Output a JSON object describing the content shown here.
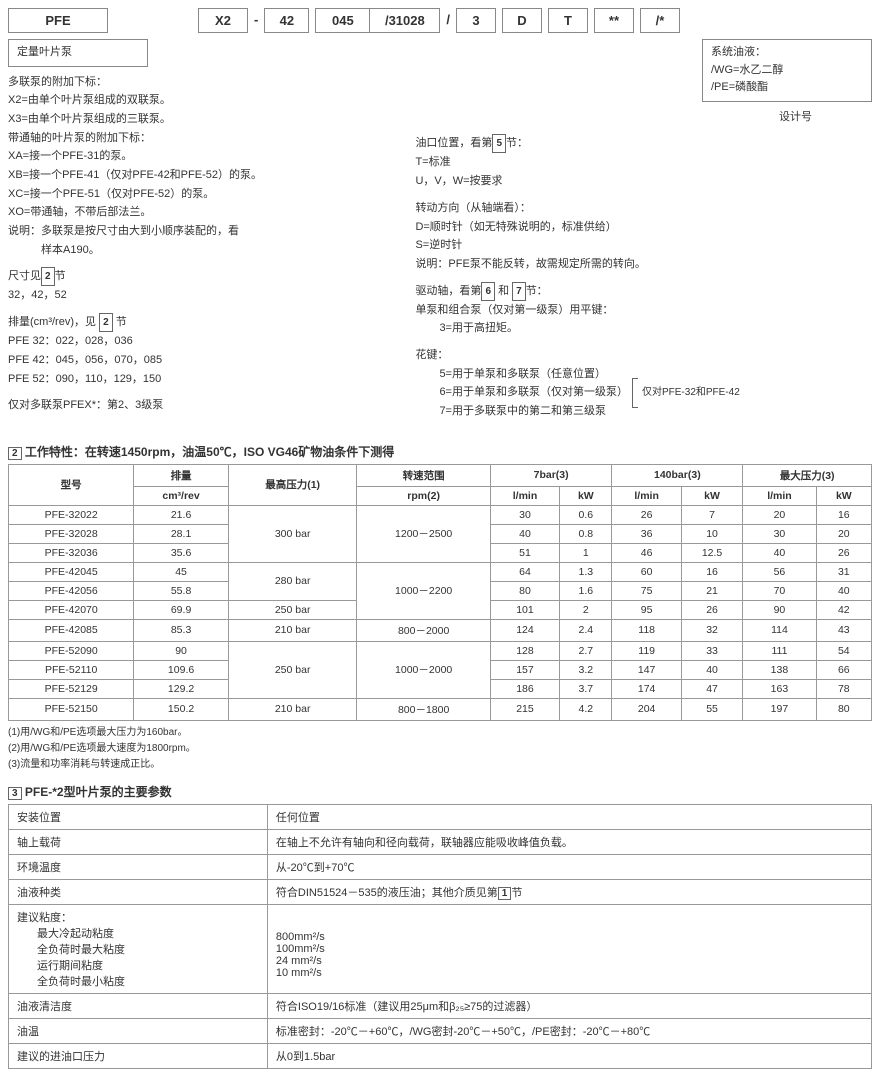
{
  "code": {
    "c1": "PFE",
    "c2": "X2",
    "c3": "42",
    "c4": "045",
    "c5": "/31028",
    "c6": "3",
    "c7": "D",
    "c8": "T",
    "c9": "**",
    "c10": "/*"
  },
  "left": {
    "box1": "定量叶片泵",
    "block1_title": "多联泵的附加下标：",
    "block1_lines": [
      "X2=由单个叶片泵组成的双联泵。",
      "X3=由单个叶片泵组成的三联泵。",
      "带通轴的叶片泵的附加下标：",
      "XA=接一个PFE-31的泵。",
      "XB=接一个PFE-41（仅对PFE-42和PFE-52）的泵。",
      "XC=接一个PFE-51（仅对PFE-52）的泵。",
      "XO=带通轴，不带后部法兰。",
      "说明：多联泵是按尺寸由大到小顺序装配的，看",
      "　　　样本A190。"
    ],
    "sizes_label": "尺寸见",
    "sizes_num": "2",
    "sizes_suffix": "节",
    "sizes_vals": "32，42，52",
    "disp_label": "排量(cm³/rev)，见",
    "disp_num": "2",
    "disp_suffix": "节",
    "disp_lines": [
      "PFE 32：022，028，036",
      "PFE 42：045，056，070，085",
      "PFE 52：090，110，129，150"
    ],
    "bottom": "仅对多联泵PFEX*：第2、3级泵"
  },
  "right": {
    "box_title": "系统油液：",
    "box_lines": [
      "/WG=水乙二醇",
      "/PE=磷酸酯"
    ],
    "design": "设计号",
    "port_title": "油口位置，看第",
    "port_num": "5",
    "port_suffix": "节：",
    "port_lines": [
      "T=标准",
      "U，V，W=按要求"
    ],
    "rot_title": "转动方向（从轴端看）：",
    "rot_lines": [
      "D=顺时针（如无特殊说明的，标准供给）",
      "S=逆时针",
      "说明：PFE泵不能反转，故需规定所需的转向。"
    ],
    "shaft_title_a": "驱动轴，看第",
    "shaft_num1": "6",
    "shaft_and": "和",
    "shaft_num2": "7",
    "shaft_suffix": "节：",
    "shaft_l1": "单泵和组合泵（仅对第一级泵）用平键：",
    "shaft_l2": "3=用于高扭矩。",
    "spline_title": "花键：",
    "spline_lines": [
      "5=用于单泵和多联泵（任意位置）",
      "6=用于单泵和多联泵（仅对第一级泵）",
      "7=用于多联泵中的第二和第三级泵"
    ],
    "spline_note": "仅对PFE-32和PFE-42"
  },
  "sec2": {
    "num": "2",
    "title": "工作特性：在转速1450rpm，油温50℃，ISO VG46矿物油条件下测得",
    "headers": {
      "model": "型号",
      "disp": "排量",
      "disp_unit": "cm³/rev",
      "pmax": "最高压力(1)",
      "speed": "转速范围",
      "speed_unit": "rpm(2)",
      "p7": "7bar(3)",
      "p140": "140bar(3)",
      "pmaxcol": "最大压力(3)",
      "lmin": "l/min",
      "kw": "kW"
    },
    "rows": [
      {
        "m": "PFE-32022",
        "d": "21.6",
        "p": "300 bar",
        "rp": 3,
        "s": "1200－2500",
        "srp": 3,
        "a": "30",
        "b": "0.6",
        "c": "26",
        "e": "7",
        "f": "20",
        "g": "16"
      },
      {
        "m": "PFE-32028",
        "d": "28.1",
        "a": "40",
        "b": "0.8",
        "c": "36",
        "e": "10",
        "f": "30",
        "g": "20"
      },
      {
        "m": "PFE-32036",
        "d": "35.6",
        "a": "51",
        "b": "1",
        "c": "46",
        "e": "12.5",
        "f": "40",
        "g": "26"
      },
      {
        "m": "PFE-42045",
        "d": "45",
        "p": "280 bar",
        "rp": 2,
        "s": "1000－2200",
        "srp": 3,
        "a": "64",
        "b": "1.3",
        "c": "60",
        "e": "16",
        "f": "56",
        "g": "31"
      },
      {
        "m": "PFE-42056",
        "d": "55.8",
        "a": "80",
        "b": "1.6",
        "c": "75",
        "e": "21",
        "f": "70",
        "g": "40"
      },
      {
        "m": "PFE-42070",
        "d": "69.9",
        "p": "250 bar",
        "rp": 1,
        "a": "101",
        "b": "2",
        "c": "95",
        "e": "26",
        "f": "90",
        "g": "42"
      },
      {
        "m": "PFE-42085",
        "d": "85.3",
        "p": "210 bar",
        "rp": 1,
        "s": "800－2000",
        "srp": 1,
        "a": "124",
        "b": "2.4",
        "c": "118",
        "e": "32",
        "f": "114",
        "g": "43"
      },
      {
        "m": "PFE-52090",
        "d": "90",
        "p": "250 bar",
        "rp": 3,
        "s": "1000－2000",
        "srp": 3,
        "a": "128",
        "b": "2.7",
        "c": "119",
        "e": "33",
        "f": "111",
        "g": "54"
      },
      {
        "m": "PFE-52110",
        "d": "109.6",
        "a": "157",
        "b": "3.2",
        "c": "147",
        "e": "40",
        "f": "138",
        "g": "66"
      },
      {
        "m": "PFE-52129",
        "d": "129.2",
        "a": "186",
        "b": "3.7",
        "c": "174",
        "e": "47",
        "f": "163",
        "g": "78"
      },
      {
        "m": "PFE-52150",
        "d": "150.2",
        "p": "210 bar",
        "rp": 1,
        "s": "800－1800",
        "srp": 1,
        "a": "215",
        "b": "4.2",
        "c": "204",
        "e": "55",
        "f": "197",
        "g": "80"
      }
    ],
    "notes": [
      "(1)用/WG和/PE选项最大压力为160bar。",
      "(2)用/WG和/PE选项最大速度为1800rpm。",
      "(3)流量和功率消耗与转速成正比。"
    ]
  },
  "sec3": {
    "num": "3",
    "title": "PFE-*2型叶片泵的主要参数",
    "rows": [
      {
        "k": "安装位置",
        "v": "任何位置"
      },
      {
        "k": "轴上载荷",
        "v": "在轴上不允许有轴向和径向载荷，联轴器应能吸收峰值负载。"
      },
      {
        "k": "环境温度",
        "v": "从-20℃到+70℃"
      },
      {
        "k": "油液种类",
        "v": "符合DIN51524－535的液压油；其他介质见第",
        "num": "1",
        "vs": "节"
      },
      {
        "k": "建议粘度：",
        "multi": true,
        "sub": [
          {
            "k": "最大冷起动粘度",
            "v": "800mm²/s"
          },
          {
            "k": "全负荷时最大粘度",
            "v": "100mm²/s"
          },
          {
            "k": "运行期间粘度",
            "v": "24 mm²/s"
          },
          {
            "k": "全负荷时最小粘度",
            "v": "10 mm²/s"
          }
        ]
      },
      {
        "k": "油液清洁度",
        "v": "符合ISO19/16标准（建议用25μm和β₂₅≥75的过滤器）"
      },
      {
        "k": "油温",
        "v": "标准密封：-20℃－+60℃，/WG密封-20℃－+50℃，/PE密封：-20℃－+80℃"
      },
      {
        "k": "建议的进油口压力",
        "v": "从0到1.5bar"
      }
    ]
  }
}
